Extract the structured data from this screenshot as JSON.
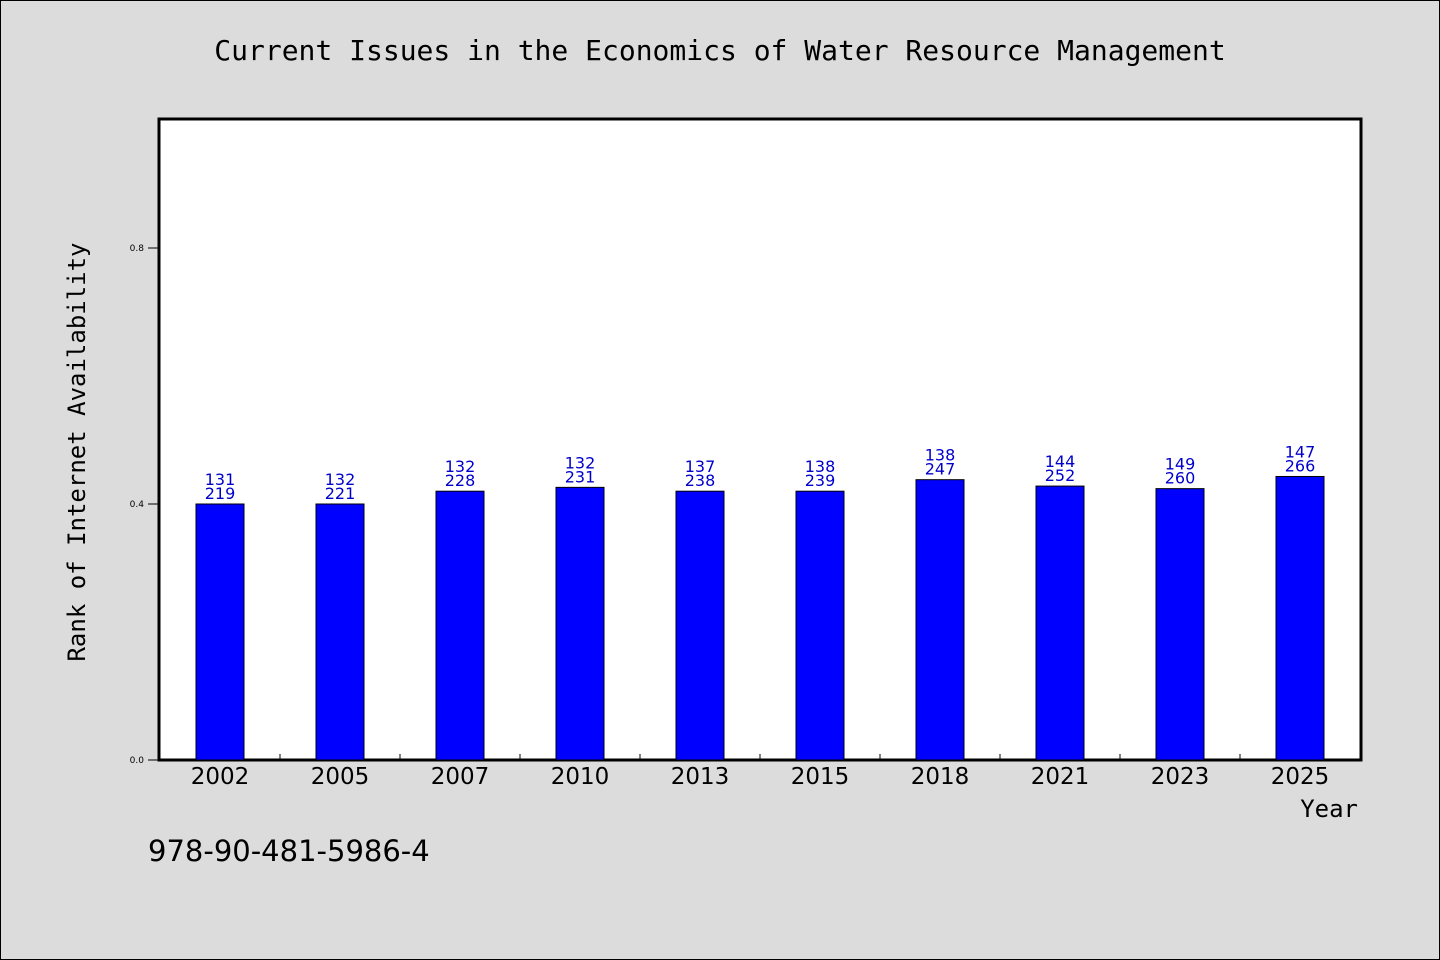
{
  "chart_data": {
    "type": "bar",
    "title": "Current Issues in the Economics of Water Resource Management",
    "xlabel": "Year",
    "ylabel": "Rank of Internet Availability",
    "categories": [
      "2002",
      "2005",
      "2007",
      "2010",
      "2013",
      "2015",
      "2018",
      "2021",
      "2023",
      "2025"
    ],
    "values": [
      0.4,
      0.4,
      0.42,
      0.426,
      0.42,
      0.42,
      0.438,
      0.428,
      0.424,
      0.443
    ],
    "label_top": [
      "131",
      "132",
      "132",
      "132",
      "137",
      "138",
      "138",
      "144",
      "149",
      "147"
    ],
    "label_bottom": [
      "219",
      "221",
      "228",
      "231",
      "238",
      "239",
      "247",
      "252",
      "260",
      "266"
    ],
    "ylim": [
      0,
      1.0
    ],
    "yticks": [
      "0.0",
      "0.4",
      "0.8"
    ],
    "ytick_values": [
      0.0,
      0.4,
      0.8
    ],
    "grid": false,
    "bar_color": "#0000ff",
    "label_color": "#0000cc"
  },
  "footer": {
    "isbn": "978-90-481-5986-4"
  }
}
